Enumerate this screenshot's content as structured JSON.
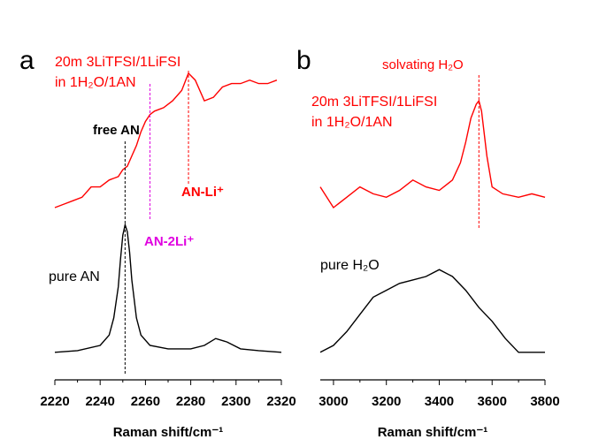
{
  "chart_data": [
    {
      "type": "line",
      "panel_label": "a",
      "xlabel": "Raman shift/cm⁻¹",
      "xlim": [
        2220,
        2320
      ],
      "xticks": [
        2220,
        2240,
        2260,
        2280,
        2300,
        2320
      ],
      "xminorticks": [
        2230,
        2250,
        2270,
        2290,
        2310
      ],
      "ylim": [
        0,
        1
      ],
      "series": [
        {
          "name": [
            "20m 3LiTFSI/1LiFSI",
            "in 1H₂O/1AN"
          ],
          "color": "#ff0000",
          "x": [
            2220,
            2224,
            2228,
            2232,
            2236,
            2240,
            2244,
            2248,
            2250,
            2252,
            2254,
            2256,
            2258,
            2260,
            2262,
            2264,
            2268,
            2272,
            2276,
            2279,
            2282,
            2286,
            2290,
            2294,
            2298,
            2302,
            2306,
            2310,
            2314,
            2318
          ],
          "values": [
            0.5,
            0.51,
            0.52,
            0.53,
            0.56,
            0.56,
            0.58,
            0.59,
            0.61,
            0.62,
            0.65,
            0.68,
            0.72,
            0.75,
            0.77,
            0.78,
            0.79,
            0.81,
            0.84,
            0.89,
            0.87,
            0.81,
            0.82,
            0.85,
            0.86,
            0.86,
            0.87,
            0.86,
            0.86,
            0.87
          ]
        },
        {
          "name": [
            "pure AN"
          ],
          "color": "#000000",
          "x": [
            2220,
            2230,
            2240,
            2244,
            2246,
            2248,
            2249,
            2250,
            2251,
            2252,
            2253,
            2254,
            2256,
            2258,
            2262,
            2270,
            2280,
            2286,
            2291,
            2296,
            2302,
            2310,
            2320
          ],
          "values": [
            0.08,
            0.085,
            0.1,
            0.13,
            0.18,
            0.27,
            0.35,
            0.42,
            0.45,
            0.43,
            0.37,
            0.29,
            0.18,
            0.13,
            0.1,
            0.09,
            0.09,
            0.1,
            0.12,
            0.11,
            0.09,
            0.085,
            0.08
          ]
        }
      ],
      "vlines": [
        {
          "x": 2251,
          "color": "#000000",
          "label": "free AN"
        },
        {
          "x": 2262,
          "color": "#e000e0",
          "label": "AN-2Li⁺"
        },
        {
          "x": 2279,
          "color": "#ff0000",
          "label": "AN-Li⁺"
        }
      ]
    },
    {
      "type": "line",
      "panel_label": "b",
      "xlabel": "Raman shift/cm⁻¹",
      "xlim": [
        2950,
        3800
      ],
      "xticks": [
        3000,
        3200,
        3400,
        3600,
        3800
      ],
      "xminorticks": [
        3100,
        3300,
        3500,
        3700
      ],
      "ylim": [
        0,
        1
      ],
      "series": [
        {
          "name": [
            "20m 3LiTFSI/1LiFSI",
            "in 1H₂O/1AN"
          ],
          "color": "#ff0000",
          "x": [
            2950,
            3000,
            3050,
            3100,
            3150,
            3200,
            3250,
            3300,
            3350,
            3400,
            3450,
            3480,
            3500,
            3520,
            3540,
            3550,
            3560,
            3580,
            3600,
            3640,
            3700,
            3750,
            3800
          ],
          "values": [
            0.56,
            0.5,
            0.53,
            0.56,
            0.54,
            0.53,
            0.55,
            0.58,
            0.56,
            0.55,
            0.58,
            0.63,
            0.69,
            0.76,
            0.8,
            0.81,
            0.78,
            0.65,
            0.56,
            0.54,
            0.53,
            0.54,
            0.53
          ]
        },
        {
          "name": [
            "pure H₂O"
          ],
          "color": "#000000",
          "x": [
            2950,
            3000,
            3050,
            3100,
            3150,
            3200,
            3250,
            3300,
            3350,
            3400,
            3450,
            3500,
            3550,
            3600,
            3650,
            3700,
            3750,
            3800
          ],
          "values": [
            0.08,
            0.1,
            0.14,
            0.19,
            0.24,
            0.26,
            0.28,
            0.29,
            0.3,
            0.32,
            0.3,
            0.26,
            0.21,
            0.17,
            0.12,
            0.08,
            0.08,
            0.08
          ]
        }
      ],
      "vlines": [
        {
          "x": 3550,
          "color": "#ff0000",
          "label": "solvating H₂O"
        }
      ]
    }
  ]
}
